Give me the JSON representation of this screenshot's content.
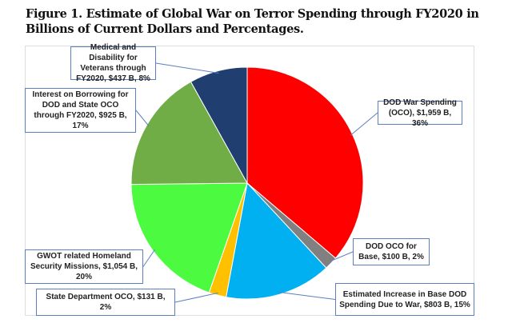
{
  "chart_data": {
    "type": "pie",
    "title": "Figure 1. Estimate of Global War on Terror Spending through FY2020 in Billions of Current Dollars and Percentages.",
    "unit": "Billions of current dollars",
    "slices": [
      {
        "name": "DOD War Spending (OCO)",
        "value": 1959,
        "percent": 36,
        "color": "#FF0000",
        "label": "DOD War Spending (OCO),  $1,959 B, 36%"
      },
      {
        "name": "DOD OCO for Base",
        "value": 100,
        "percent": 2,
        "color": "#808080",
        "label": "DOD OCO for Base, $100 B, 2%"
      },
      {
        "name": "Estimated Increase in Base DOD Spending Due to War",
        "value": 803,
        "percent": 15,
        "color": "#00B0F0",
        "label": "Estimated Increase in Base DOD Spending Due to War,  $803 B, 15%"
      },
      {
        "name": "State Department OCO",
        "value": 131,
        "percent": 2,
        "color": "#FFC000",
        "label": "State Department OCO,  $131 B, 2%"
      },
      {
        "name": "GWOT related Homeland Security Missions",
        "value": 1054,
        "percent": 20,
        "color": "#4CFA40",
        "label": "GWOT related Homeland Security Missions,  $1,054 B, 20%"
      },
      {
        "name": "Interest on Borrowing for DOD and State OCO through FY2020",
        "value": 925,
        "percent": 17,
        "color": "#70AD47",
        "label": "Interest on Borrowing for DOD and State OCO through FY2020,  $925 B, 17%"
      },
      {
        "name": "Medical and Disability for Veterans through FY2020",
        "value": 437,
        "percent": 8,
        "color": "#203F70",
        "label": "Medical and Disability for Veterans through FY2020,  $437 B, 8%"
      }
    ],
    "legend": "none (callout labels)"
  }
}
